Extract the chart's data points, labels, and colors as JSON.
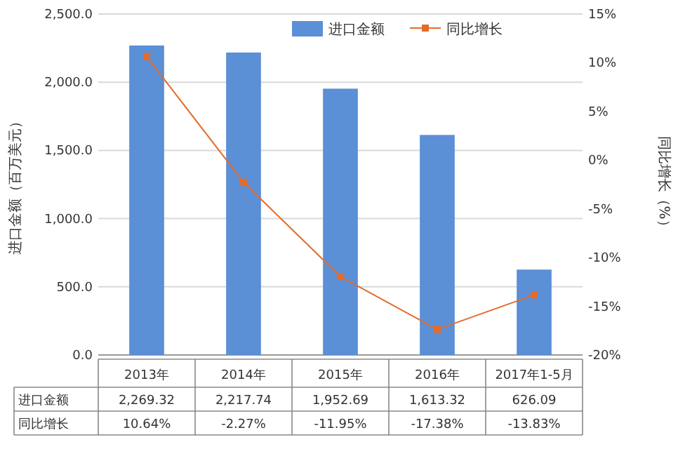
{
  "chart_data": {
    "type": "bar",
    "categories": [
      "2013年",
      "2014年",
      "2015年",
      "2016年",
      "2017年1-5月"
    ],
    "series": [
      {
        "name": "进口金额",
        "color": "#5b8fd6",
        "values": [
          2269.32,
          2217.74,
          1952.69,
          1613.32,
          626.09
        ],
        "value_labels": [
          "2,269.32",
          "2,217.74",
          "1,952.69",
          "1,613.32",
          "626.09"
        ]
      },
      {
        "name": "同比增长",
        "type": "line",
        "axis": "y2",
        "color": "#e36c2a",
        "marker": "square",
        "values": [
          10.64,
          -2.27,
          -11.95,
          -17.38,
          -13.83
        ],
        "value_labels": [
          "10.64%",
          "-2.27%",
          "-11.95%",
          "-17.38%",
          "-13.83%"
        ]
      }
    ],
    "ylabel": "进口金额（百万美元）",
    "y2label": "同比增长（%）",
    "ylim": [
      0,
      2500
    ],
    "yticks": [
      {
        "value": 0,
        "label": "0.0"
      },
      {
        "value": 500,
        "label": "500.0"
      },
      {
        "value": 1000,
        "label": "1,000.0"
      },
      {
        "value": 1500,
        "label": "1,500.0"
      },
      {
        "value": 2000,
        "label": "2,000.0"
      },
      {
        "value": 2500,
        "label": "2,500.0"
      }
    ],
    "y2lim": [
      -20,
      15
    ],
    "y2ticks": [
      {
        "value": -20,
        "label": "-20%"
      },
      {
        "value": -15,
        "label": "-15%"
      },
      {
        "value": -10,
        "label": "-10%"
      },
      {
        "value": -5,
        "label": "-5%"
      },
      {
        "value": 0,
        "label": "0%"
      },
      {
        "value": 5,
        "label": "5%"
      },
      {
        "value": 10,
        "label": "10%"
      },
      {
        "value": 15,
        "label": "15%"
      }
    ],
    "grid": "y",
    "legend": "top right"
  }
}
